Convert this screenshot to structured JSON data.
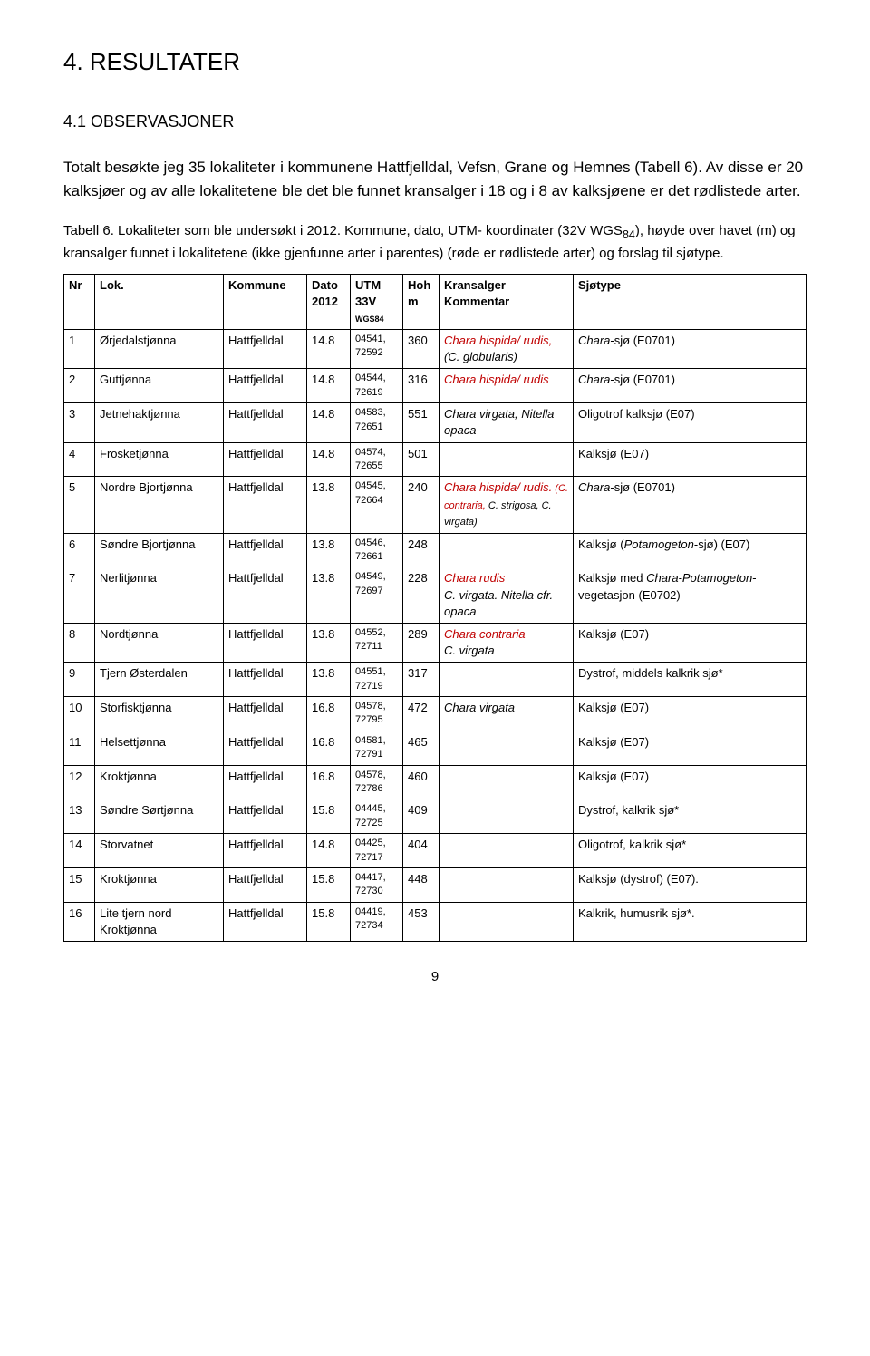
{
  "heading1": "4. RESULTATER",
  "heading2": "4.1 OBSERVASJONER",
  "para1": "Totalt besøkte jeg 35 lokaliteter i kommunene Hattfjelldal, Vefsn, Grane og Hemnes (Tabell 6). Av disse er 20 kalksjøer og av alle lokalitetene ble det ble funnet kransalger i 18 og i 8 av kalksjøene er det rødlistede arter.",
  "para2a": "Tabell 6. Lokaliteter som ble undersøkt i 2012. Kommune, dato, UTM- koordinater (32V WGS",
  "para2sub": "84",
  "para2b": "), høyde over havet (m) og kransalger funnet i lokalitetene (ikke gjenfunne arter i parentes) (røde er rødlistede arter) og forslag til sjøtype.",
  "headers": {
    "nr": "Nr",
    "lok": "Lok.",
    "kommune": "Kommune",
    "dato": "Dato 2012",
    "utm": "UTM 33V",
    "utm_sub": "WGS84",
    "hoh": "Hoh m",
    "kransalger": "Kransalger Kommentar",
    "sjotype": "Sjøtype"
  },
  "rows": [
    {
      "nr": "1",
      "lok": "Ørjedalstjønna",
      "kom": "Hattfjelldal",
      "dato": "14.8",
      "utm": "04541, 72592",
      "hoh": "360",
      "kra_parts": [
        {
          "t": "Chara hispida/ rudis,",
          "red": true,
          "i": true
        },
        {
          "t": " (C. globularis)",
          "i": true
        }
      ],
      "sjo_parts": [
        {
          "t": "Chara",
          "i": true
        },
        {
          "t": "-sjø (E0701)"
        }
      ]
    },
    {
      "nr": "2",
      "lok": "Guttjønna",
      "kom": "Hattfjelldal",
      "dato": "14.8",
      "utm": "04544, 72619",
      "hoh": "316",
      "kra_parts": [
        {
          "t": "Chara hispida/ rudis",
          "red": true,
          "i": true
        }
      ],
      "sjo_parts": [
        {
          "t": "Chara",
          "i": true
        },
        {
          "t": "-sjø (E0701)"
        }
      ]
    },
    {
      "nr": "3",
      "lok": "Jetnehaktjønna",
      "kom": "Hattfjelldal",
      "dato": "14.8",
      "utm": "04583, 72651",
      "hoh": "551",
      "kra_parts": [
        {
          "t": "Chara virgata, Nitella opaca",
          "i": true
        }
      ],
      "sjo_parts": [
        {
          "t": "Oligotrof kalksjø (E07)"
        }
      ]
    },
    {
      "nr": "4",
      "lok": "Frosketjønna",
      "kom": "Hattfjelldal",
      "dato": "14.8",
      "utm": "04574, 72655",
      "hoh": "501",
      "kra_parts": [],
      "sjo_parts": [
        {
          "t": "Kalksjø (E07)"
        }
      ]
    },
    {
      "nr": "5",
      "lok": "Nordre Bjortjønna",
      "kom": "Hattfjelldal",
      "dato": "13.8",
      "utm": "04545, 72664",
      "hoh": "240",
      "kra_parts": [
        {
          "t": "Chara hispida/ rudis.",
          "red": true,
          "i": true
        },
        {
          "t": " (C. contraria,",
          "red": true,
          "i": true,
          "small": true
        },
        {
          "t": " C. strigosa, C. virgata)",
          "i": true,
          "small": true
        }
      ],
      "sjo_parts": [
        {
          "t": "Chara",
          "i": true
        },
        {
          "t": "-sjø (E0701)"
        }
      ]
    },
    {
      "nr": "6",
      "lok": "Søndre Bjortjønna",
      "kom": "Hattfjelldal",
      "dato": "13.8",
      "utm": "04546, 72661",
      "hoh": "248",
      "kra_parts": [],
      "sjo_parts": [
        {
          "t": "Kalksjø ("
        },
        {
          "t": "Potamogeton",
          "i": true
        },
        {
          "t": "-sjø) (E07)"
        }
      ]
    },
    {
      "nr": "7",
      "lok": "Nerlitjønna",
      "kom": "Hattfjelldal",
      "dato": "13.8",
      "utm": "04549, 72697",
      "hoh": "228",
      "kra_parts": [
        {
          "t": "Chara rudis",
          "red": true,
          "i": true
        },
        {
          "t": "\nC. virgata. Nitella cfr. opaca",
          "i": true
        }
      ],
      "sjo_parts": [
        {
          "t": "Kalksjø med "
        },
        {
          "t": "Chara-Potamogeton",
          "i": true
        },
        {
          "t": "-vegetasjon (E0702)"
        }
      ]
    },
    {
      "nr": "8",
      "lok": "Nordtjønna",
      "kom": "Hattfjelldal",
      "dato": "13.8",
      "utm": "04552, 72711",
      "hoh": "289",
      "kra_parts": [
        {
          "t": "Chara contraria",
          "red": true,
          "i": true
        },
        {
          "t": "\nC. virgata",
          "i": true
        }
      ],
      "sjo_parts": [
        {
          "t": "Kalksjø (E07)"
        }
      ]
    },
    {
      "nr": "9",
      "lok": "Tjern Østerdalen",
      "kom": "Hattfjelldal",
      "dato": "13.8",
      "utm": "04551, 72719",
      "hoh": "317",
      "kra_parts": [],
      "sjo_parts": [
        {
          "t": "Dystrof, middels kalkrik sjø*"
        }
      ]
    },
    {
      "nr": "10",
      "lok": "Storfisktjønna",
      "kom": "Hattfjelldal",
      "dato": "16.8",
      "utm": "04578, 72795",
      "hoh": "472",
      "kra_parts": [
        {
          "t": "Chara virgata",
          "i": true
        }
      ],
      "sjo_parts": [
        {
          "t": "Kalksjø (E07)"
        }
      ]
    },
    {
      "nr": "11",
      "lok": "Helsettjønna",
      "kom": "Hattfjelldal",
      "dato": "16.8",
      "utm": "04581, 72791",
      "hoh": "465",
      "kra_parts": [],
      "sjo_parts": [
        {
          "t": "Kalksjø (E07)"
        }
      ]
    },
    {
      "nr": "12",
      "lok": "Kroktjønna",
      "kom": "Hattfjelldal",
      "dato": "16.8",
      "utm": "04578, 72786",
      "hoh": "460",
      "kra_parts": [],
      "sjo_parts": [
        {
          "t": "Kalksjø (E07)"
        }
      ]
    },
    {
      "nr": "13",
      "lok": "Søndre Sørtjønna",
      "kom": "Hattfjelldal",
      "dato": "15.8",
      "utm": "04445, 72725",
      "hoh": "409",
      "kra_parts": [],
      "sjo_parts": [
        {
          "t": "Dystrof, kalkrik sjø*"
        }
      ]
    },
    {
      "nr": "14",
      "lok": "Storvatnet",
      "kom": "Hattfjelldal",
      "dato": "14.8",
      "utm": "04425, 72717",
      "hoh": "404",
      "kra_parts": [],
      "sjo_parottákलok": [
        {
          "t": "Oligotrof, kalkrik sjø*"
        }
      ],
      "sjo_parts": [
        {
          "t": "Oligotrof, kalkrik sjø*"
        }
      ]
    },
    {
      "nr": "15",
      "lok": "Kroktjønna",
      "kom": "Hattfjelldal",
      "dato": "15.8",
      "utm": "04417, 72730",
      "hoh": "448",
      "kra_parts": [],
      "sjo_parts": [
        {
          "t": "Kalksjø (dystrof) (E07)."
        }
      ]
    },
    {
      "nr": "16",
      "lok": "Lite tjern nord Kroktjønna",
      "kom": "Hattfjelldal",
      "dato": "15.8",
      "utm": "04419, 72734",
      "hoh": "453",
      "kra_parts": [],
      "sjo_parts": [
        {
          "t": "Kalkrik, humusrik sjø*."
        }
      ]
    }
  ],
  "page_number": "9"
}
